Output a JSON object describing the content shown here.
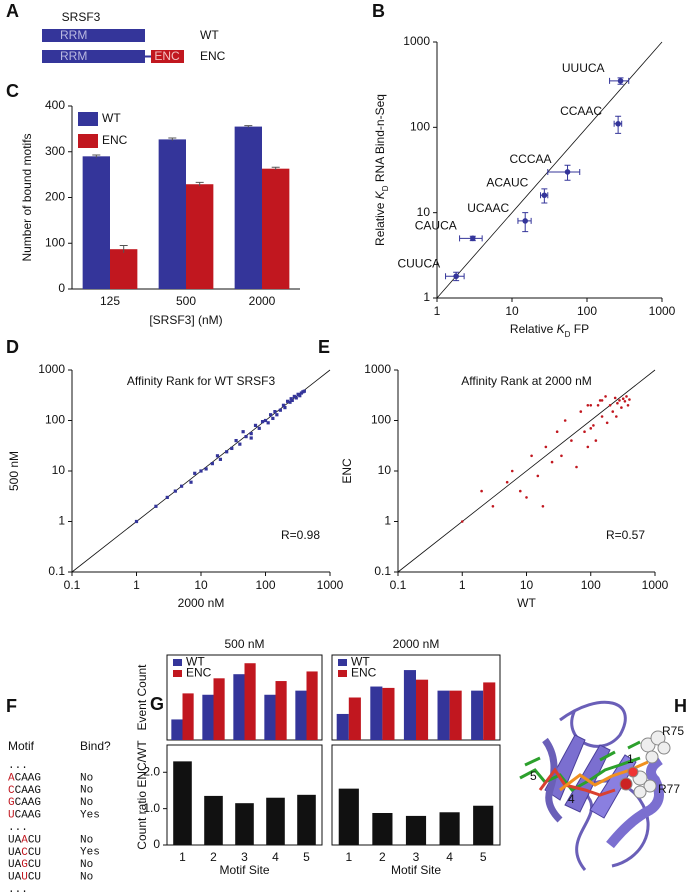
{
  "panel_labels": [
    "A",
    "B",
    "C",
    "D",
    "E",
    "F",
    "G",
    "H"
  ],
  "diagram_a": {
    "title": "SRSF3",
    "rows": [
      {
        "domains": [
          "RRM"
        ],
        "label": "WT"
      },
      {
        "domains": [
          "RRM",
          "ENC"
        ],
        "label": "ENC"
      }
    ]
  },
  "chart_data": [
    {
      "type": "bar",
      "categories": [
        "125",
        "500",
        "2000"
      ],
      "series": [
        {
          "name": "WT",
          "color": "#34359a",
          "values": [
            290,
            327,
            355
          ],
          "errors": [
            3,
            3,
            2
          ]
        },
        {
          "name": "ENC",
          "color": "#c1171f",
          "values": [
            87,
            229,
            263
          ],
          "errors": [
            8,
            4,
            3
          ]
        }
      ],
      "ylim": [
        0,
        400
      ],
      "yticks": [
        0,
        100,
        200,
        300,
        400
      ],
      "x_label": "[SRSF3] (nM)",
      "y_label": "Number of bound motifs",
      "legend": "top-left"
    },
    {
      "type": "scatter",
      "log": true,
      "color": "#34359a",
      "marker": "circle",
      "labels": [
        "UUUCA",
        "CCAAC",
        "CCCAA",
        "ACAUC",
        "UCAAC",
        "CAUCA",
        "CUUCA"
      ],
      "x": [
        280,
        260,
        55,
        27,
        15,
        3,
        1.8
      ],
      "values": [
        350,
        110,
        30,
        16,
        8,
        5,
        1.8
      ],
      "xerr": [
        80,
        30,
        25,
        3,
        3,
        1,
        0.5
      ],
      "yerr": [
        30,
        25,
        6,
        3,
        2,
        0.3,
        0.2
      ],
      "xlim": [
        1,
        1000
      ],
      "ylim": [
        1,
        1000
      ],
      "xticks": [
        1,
        10,
        100,
        1000
      ],
      "yticks": [
        1,
        10,
        100,
        1000
      ],
      "x_label": [
        "Relative ",
        "K",
        "D",
        " FP"
      ],
      "y_label": [
        "Relative ",
        "K",
        "D",
        " RNA Bind-n-Seq"
      ]
    },
    {
      "type": "scatter",
      "log": true,
      "color": "#34359a",
      "marker": "square",
      "title": "Affinity Rank for WT SRSF3",
      "annotation": "R=0.98",
      "x": [
        1,
        2,
        3,
        4,
        5,
        7,
        8,
        10,
        12,
        15,
        18,
        20,
        25,
        30,
        35,
        40,
        45,
        50,
        60,
        60,
        70,
        80,
        90,
        100,
        110,
        120,
        130,
        140,
        150,
        170,
        190,
        200,
        220,
        240,
        250,
        260,
        280,
        300,
        320,
        340,
        360,
        380,
        400
      ],
      "values": [
        1,
        2,
        3,
        4,
        5,
        6,
        9,
        10,
        11,
        14,
        20,
        17,
        24,
        28,
        40,
        34,
        60,
        48,
        55,
        45,
        80,
        70,
        95,
        100,
        90,
        130,
        110,
        150,
        130,
        160,
        200,
        180,
        240,
        230,
        270,
        250,
        300,
        280,
        330,
        310,
        350,
        370,
        380
      ],
      "xlim": [
        0.1,
        1000
      ],
      "ylim": [
        0.1,
        1000
      ],
      "xticks": [
        0.1,
        1,
        10,
        100,
        1000
      ],
      "yticks": [
        0.1,
        1,
        10,
        100,
        1000
      ],
      "x_label": "2000 nM",
      "y_label": "500 nM"
    },
    {
      "type": "scatter",
      "log": true,
      "color": "#c1171f",
      "marker": "dot",
      "title": "Affinity Rank at 2000 nM",
      "annotation": "R=0.57",
      "x": [
        1,
        2,
        3,
        5,
        6,
        8,
        10,
        12,
        15,
        18,
        20,
        25,
        30,
        35,
        40,
        50,
        60,
        70,
        80,
        90,
        90,
        100,
        100,
        110,
        120,
        130,
        140,
        150,
        150,
        170,
        180,
        200,
        220,
        240,
        250,
        260,
        280,
        300,
        320,
        340,
        360,
        380,
        400
      ],
      "values": [
        1,
        4,
        2,
        6,
        10,
        4,
        3,
        20,
        8,
        2,
        30,
        15,
        60,
        20,
        100,
        40,
        12,
        150,
        60,
        30,
        200,
        200,
        70,
        80,
        40,
        200,
        250,
        120,
        250,
        300,
        90,
        200,
        150,
        280,
        120,
        220,
        250,
        180,
        270,
        240,
        300,
        200,
        260
      ],
      "xlim": [
        0.1,
        1000
      ],
      "ylim": [
        0.1,
        1000
      ],
      "xticks": [
        0.1,
        1,
        10,
        100,
        1000
      ],
      "yticks": [
        0.1,
        1,
        10,
        100,
        1000
      ],
      "x_label": "WT",
      "y_label": "ENC"
    },
    {
      "type": "bar",
      "title": "500 nM",
      "frame": true,
      "legend": "top-left",
      "y_label": "Event Count",
      "series": [
        {
          "name": "WT",
          "color": "#34359a",
          "values": [
            15,
            33,
            48,
            33,
            36
          ]
        },
        {
          "name": "ENC",
          "color": "#c1171f",
          "values": [
            34,
            45,
            56,
            43,
            50
          ]
        }
      ],
      "ylim": [
        0,
        62
      ]
    },
    {
      "type": "bar",
      "title": "2000 nM",
      "frame": true,
      "legend": "top-left",
      "series": [
        {
          "name": "WT",
          "color": "#34359a",
          "values": [
            19,
            39,
            51,
            36,
            36
          ]
        },
        {
          "name": "ENC",
          "color": "#c1171f",
          "values": [
            31,
            38,
            44,
            36,
            42
          ]
        }
      ],
      "ylim": [
        0,
        62
      ]
    },
    {
      "type": "bar",
      "frame": true,
      "color": "#111111",
      "categories": [
        "1",
        "2",
        "3",
        "4",
        "5"
      ],
      "values": [
        2.3,
        1.35,
        1.15,
        1.3,
        1.38
      ],
      "ylim": [
        0,
        2.75
      ],
      "yticks": [
        0,
        {
          "value": 1,
          "label": "1.0"
        },
        {
          "value": 2,
          "label": "2.0"
        }
      ],
      "x_label": "Motif Site",
      "y_label": "Count ratio ENC/WT"
    },
    {
      "type": "bar",
      "frame": true,
      "color": "#111111",
      "categories": [
        "1",
        "2",
        "3",
        "4",
        "5"
      ],
      "values": [
        1.55,
        0.88,
        0.8,
        0.9,
        1.08
      ],
      "ylim": [
        0,
        2.75
      ],
      "x_label": "Motif Site"
    }
  ],
  "table_f": {
    "headers": [
      "Motif",
      "Bind?"
    ],
    "highlight_color": "#c1171f",
    "rows": [
      "...",
      {
        "motif": [
          "A",
          "CAAG"
        ],
        "red": 0,
        "bind": "No"
      },
      {
        "motif": [
          "C",
          "CAAG"
        ],
        "red": 0,
        "bind": "No"
      },
      {
        "motif": [
          "G",
          "CAAG"
        ],
        "red": 0,
        "bind": "No"
      },
      {
        "motif": [
          "U",
          "CAAG"
        ],
        "red": 0,
        "bind": "Yes"
      },
      "...",
      {
        "motif": [
          "UA",
          "A",
          "CU"
        ],
        "red": 1,
        "bind": "No"
      },
      {
        "motif": [
          "UA",
          "C",
          "CU"
        ],
        "red": 1,
        "bind": "Yes"
      },
      {
        "motif": [
          "UA",
          "G",
          "CU"
        ],
        "red": 1,
        "bind": "No"
      },
      {
        "motif": [
          "UA",
          "U",
          "CU"
        ],
        "red": 1,
        "bind": "No"
      },
      "..."
    ]
  },
  "structure_h": {
    "labels": [
      "R75",
      "R77",
      "5",
      "4",
      "1"
    ]
  }
}
